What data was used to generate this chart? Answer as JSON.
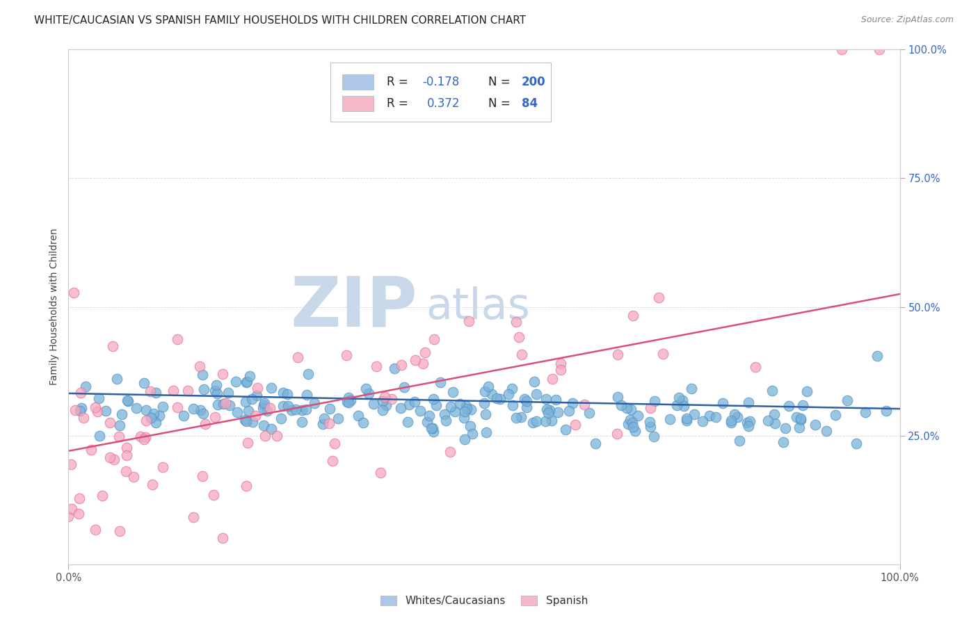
{
  "title": "WHITE/CAUCASIAN VS SPANISH FAMILY HOUSEHOLDS WITH CHILDREN CORRELATION CHART",
  "source": "Source: ZipAtlas.com",
  "ylabel": "Family Households with Children",
  "xlim": [
    0,
    1
  ],
  "ylim": [
    0,
    1
  ],
  "xtick_labels": [
    "0.0%",
    "100.0%"
  ],
  "ytick_labels": [
    "25.0%",
    "50.0%",
    "75.0%",
    "100.0%"
  ],
  "ytick_positions": [
    0.25,
    0.5,
    0.75,
    1.0
  ],
  "watermark_zip": "ZIP",
  "watermark_atlas": "atlas",
  "blue_line_x": [
    0.0,
    1.0
  ],
  "blue_line_y": [
    0.332,
    0.302
  ],
  "pink_line_x": [
    0.0,
    1.0
  ],
  "pink_line_y": [
    0.22,
    0.525
  ],
  "blue_dot_color": "#7ab3d8",
  "blue_dot_edge": "#4f91c9",
  "pink_dot_color": "#f5a8bf",
  "pink_dot_edge": "#e87098",
  "blue_line_color": "#2e5fa3",
  "pink_line_color": "#d94f7a",
  "legend_blue_face": "#aec6e8",
  "legend_pink_face": "#f4b8c8",
  "legend_border_color": "#c0c0c0",
  "grid_color": "#b0b0b0",
  "background_color": "#ffffff",
  "title_fontsize": 11,
  "axis_label_fontsize": 10,
  "tick_fontsize": 10.5,
  "source_fontsize": 9,
  "watermark_color_zip": "#c8d8e8",
  "watermark_color_atlas": "#c8d8e8",
  "watermark_fontsize": 72,
  "legend_r_color": "#222222",
  "legend_val_color": "#3366cc",
  "legend_n_color": "#222222",
  "legend_nval_color": "#3366cc",
  "right_tick_color": "#3366cc"
}
